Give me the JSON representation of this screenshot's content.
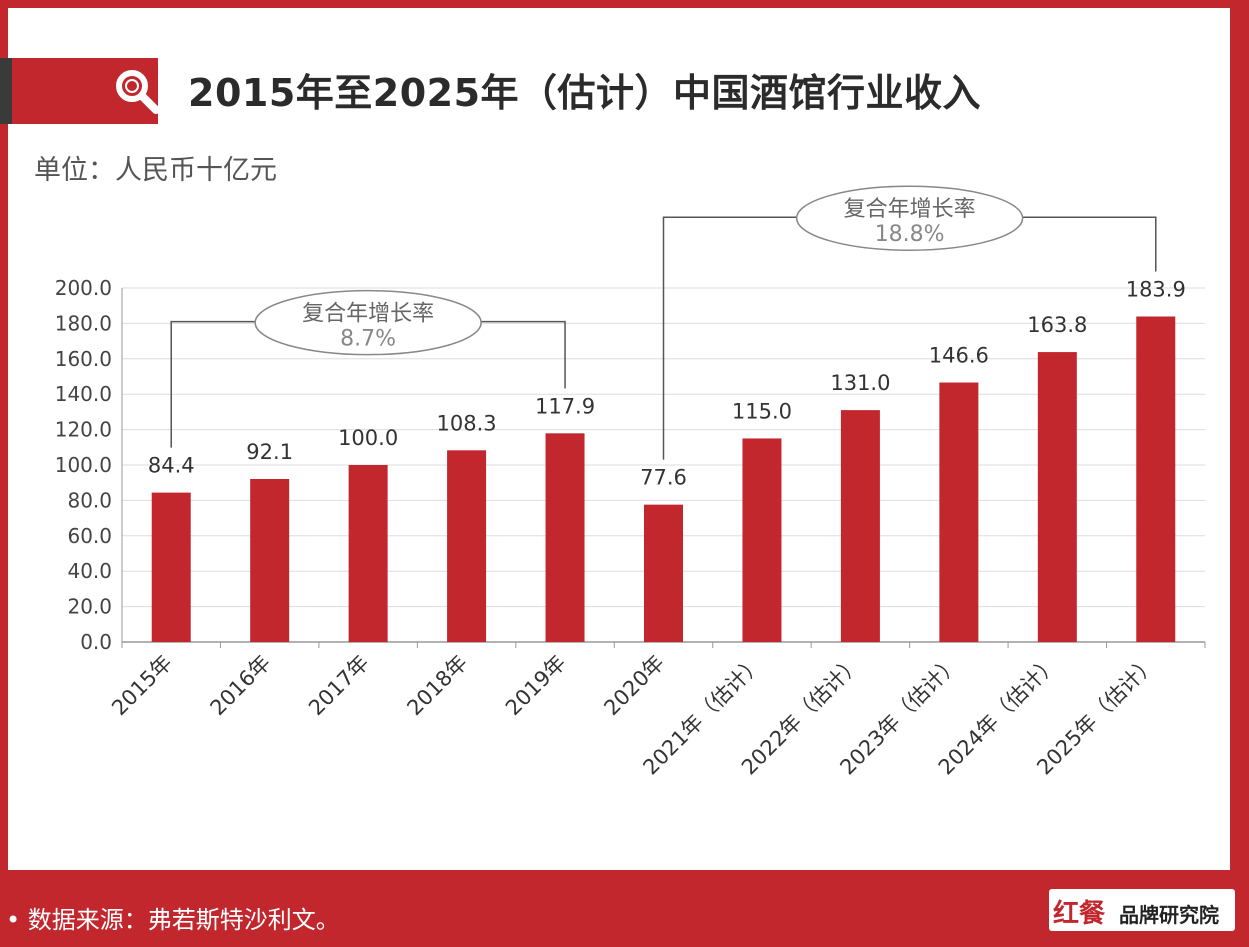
{
  "header": {
    "title": "2015年至2025年（估计）中国酒馆行业收入",
    "unit": "单位：人民币十亿元"
  },
  "footer": {
    "source": "• 数据来源：弗若斯特沙利文。",
    "logo_mark": "红餐",
    "logo_text": "品牌研究院"
  },
  "colors": {
    "brand_red": "#c1272d",
    "bar_red": "#c1272d",
    "text_dark": "#2b2b2b",
    "grid": "#dddddd"
  },
  "chart_data": {
    "type": "bar",
    "title": "2015年至2025年（估计）中国酒馆行业收入",
    "ylabel": "单位：人民币十亿元",
    "xlabel": "",
    "ylim": [
      0,
      200
    ],
    "yticks": [
      "0.0",
      "20.0",
      "40.0",
      "60.0",
      "80.0",
      "100.0",
      "120.0",
      "140.0",
      "160.0",
      "180.0",
      "200.0"
    ],
    "categories": [
      "2015年",
      "2016年",
      "2017年",
      "2018年",
      "2019年",
      "2020年",
      "2021年（估计）",
      "2022年（估计）",
      "2023年（估计）",
      "2024年（估计）",
      "2025年（估计）"
    ],
    "values": [
      84.4,
      92.1,
      100.0,
      108.3,
      117.9,
      77.6,
      115.0,
      131.0,
      146.6,
      163.8,
      183.9
    ],
    "value_labels": [
      "84.4",
      "92.1",
      "100.0",
      "108.3",
      "117.9",
      "77.6",
      "115.0",
      "131.0",
      "146.6",
      "163.8",
      "183.9"
    ],
    "grid": true,
    "annotations": [
      {
        "label": "复合年增长率",
        "value": "8.7%",
        "from_index": 0,
        "to_index": 4,
        "level": 181
      },
      {
        "label": "复合年增长率",
        "value": "18.8%",
        "from_index": 5,
        "to_index": 10,
        "level": 240
      }
    ]
  }
}
